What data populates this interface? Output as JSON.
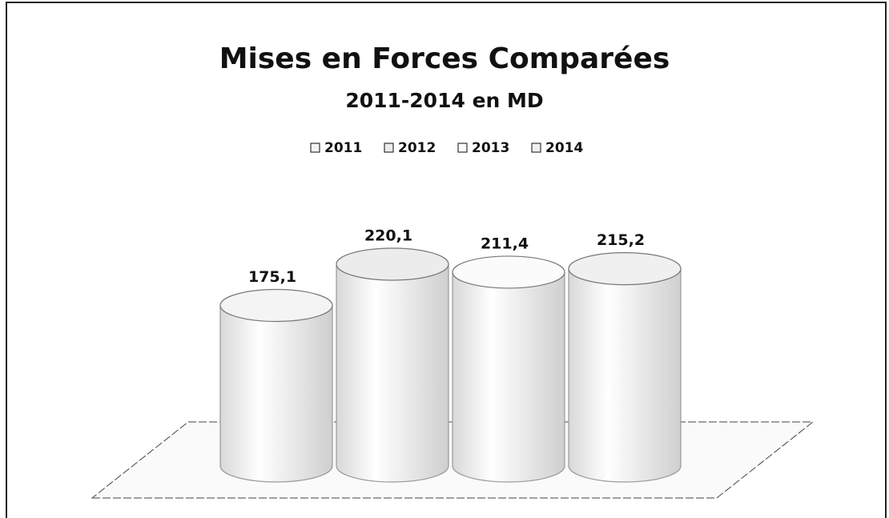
{
  "chart_data": {
    "type": "cylinder",
    "title": "Mises en Forces Comparées",
    "subtitle": "2011-2014 en MD",
    "series": [
      {
        "name": "2011",
        "color": "#f4f4f4",
        "values": [
          175.1
        ],
        "value_labels": [
          "175,1"
        ]
      },
      {
        "name": "2012",
        "color": "#ececec",
        "values": [
          220.1
        ],
        "value_labels": [
          "220,1"
        ]
      },
      {
        "name": "2013",
        "color": "#fbfbfb",
        "values": [
          211.4
        ],
        "value_labels": [
          "211,4"
        ]
      },
      {
        "name": "2014",
        "color": "#f0f0f0",
        "values": [
          215.2
        ],
        "value_labels": [
          "215,2"
        ]
      }
    ],
    "legend": "top"
  }
}
